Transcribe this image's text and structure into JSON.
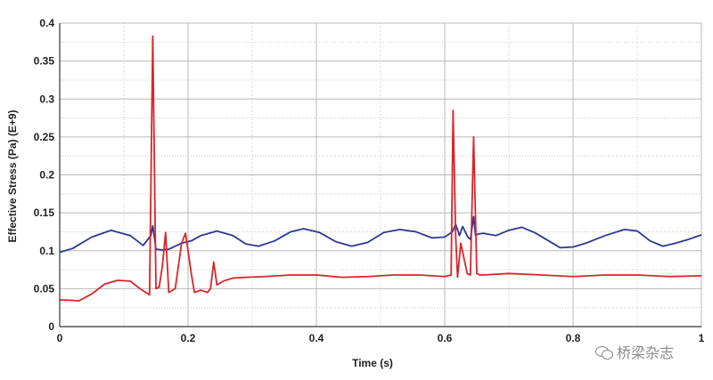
{
  "chart_data": {
    "type": "line",
    "title": "",
    "xlabel": "Time (s)",
    "ylabel": "Effective Stress (Pa) (E+9)",
    "xlim": [
      0,
      1
    ],
    "ylim": [
      0,
      0.4
    ],
    "x_ticks": [
      "0",
      "0.2",
      "0.4",
      "0.6",
      "0.8",
      "1"
    ],
    "y_ticks": [
      "0",
      "0.05",
      "0.1",
      "0.15",
      "0.2",
      "0.25",
      "0.3",
      "0.35",
      "0.4"
    ],
    "grid": true,
    "series": [
      {
        "color": "#2b3990",
        "x": [
          0,
          0.02,
          0.05,
          0.08,
          0.11,
          0.13,
          0.142,
          0.145,
          0.15,
          0.16,
          0.17,
          0.19,
          0.205,
          0.22,
          0.245,
          0.27,
          0.29,
          0.31,
          0.335,
          0.36,
          0.38,
          0.405,
          0.43,
          0.455,
          0.48,
          0.505,
          0.53,
          0.555,
          0.58,
          0.6,
          0.612,
          0.617,
          0.623,
          0.628,
          0.636,
          0.64,
          0.645,
          0.648,
          0.652,
          0.66,
          0.68,
          0.7,
          0.72,
          0.74,
          0.76,
          0.78,
          0.8,
          0.82,
          0.85,
          0.88,
          0.9,
          0.92,
          0.94,
          0.96,
          0.98,
          1
        ],
        "y": [
          0.098,
          0.103,
          0.118,
          0.127,
          0.12,
          0.107,
          0.12,
          0.133,
          0.102,
          0.101,
          0.102,
          0.11,
          0.113,
          0.12,
          0.126,
          0.12,
          0.109,
          0.106,
          0.113,
          0.125,
          0.129,
          0.124,
          0.112,
          0.106,
          0.111,
          0.124,
          0.128,
          0.125,
          0.117,
          0.118,
          0.125,
          0.135,
          0.12,
          0.132,
          0.118,
          0.115,
          0.145,
          0.12,
          0.122,
          0.123,
          0.12,
          0.127,
          0.131,
          0.124,
          0.114,
          0.104,
          0.105,
          0.11,
          0.12,
          0.128,
          0.126,
          0.113,
          0.106,
          0.11,
          0.115,
          0.121
        ]
      },
      {
        "color": "#d7262b",
        "x": [
          0,
          0.01,
          0.03,
          0.05,
          0.07,
          0.09,
          0.11,
          0.125,
          0.14,
          0.145,
          0.15,
          0.155,
          0.16,
          0.165,
          0.17,
          0.18,
          0.19,
          0.196,
          0.2,
          0.205,
          0.21,
          0.22,
          0.23,
          0.235,
          0.24,
          0.245,
          0.255,
          0.27,
          0.29,
          0.32,
          0.36,
          0.4,
          0.44,
          0.48,
          0.52,
          0.56,
          0.6,
          0.61,
          0.613,
          0.617,
          0.62,
          0.625,
          0.63,
          0.635,
          0.64,
          0.645,
          0.65,
          0.655,
          0.66,
          0.7,
          0.75,
          0.8,
          0.85,
          0.9,
          0.95,
          1
        ],
        "y": [
          0.035,
          0.035,
          0.034,
          0.043,
          0.056,
          0.061,
          0.06,
          0.05,
          0.042,
          0.383,
          0.05,
          0.052,
          0.08,
          0.124,
          0.045,
          0.05,
          0.11,
          0.123,
          0.1,
          0.07,
          0.045,
          0.048,
          0.045,
          0.05,
          0.085,
          0.055,
          0.06,
          0.064,
          0.065,
          0.066,
          0.068,
          0.068,
          0.065,
          0.066,
          0.068,
          0.068,
          0.066,
          0.068,
          0.285,
          0.12,
          0.065,
          0.11,
          0.09,
          0.07,
          0.068,
          0.25,
          0.07,
          0.068,
          0.068,
          0.07,
          0.068,
          0.066,
          0.068,
          0.068,
          0.066,
          0.067
        ]
      }
    ]
  },
  "watermark": {
    "text": "桥梁杂志"
  }
}
